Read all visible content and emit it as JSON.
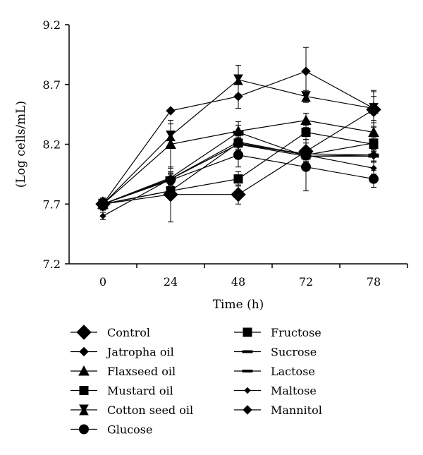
{
  "chart_data": {
    "type": "line",
    "title": "",
    "xlabel": "Time (h)",
    "ylabel": "(Log cells/mL)",
    "categories": [
      "0",
      "24",
      "48",
      "72",
      "78"
    ],
    "ylim": [
      7.2,
      9.2
    ],
    "yticks": [
      "7.2",
      "7.7",
      "8.2",
      "8.7",
      "9.2"
    ],
    "grid": false,
    "legend_position": "bottom",
    "series": [
      {
        "name": "Control",
        "marker": "diamond-large",
        "values": [
          7.7,
          7.78,
          7.78,
          8.14,
          8.49
        ],
        "errors": [
          0.05,
          0.23,
          0.08,
          0.1,
          0.15
        ]
      },
      {
        "name": "Jatropha oil",
        "marker": "diamond",
        "values": [
          7.7,
          8.48,
          8.6,
          8.81,
          8.5
        ],
        "errors": [
          0.04,
          0.0,
          0.1,
          0.2,
          0.1
        ]
      },
      {
        "name": "Flaxseed oil",
        "marker": "triangle",
        "values": [
          7.7,
          8.2,
          8.31,
          8.4,
          8.3
        ],
        "errors": [
          0.04,
          0.2,
          0.08,
          0.06,
          0.08
        ]
      },
      {
        "name": "Mustard oil",
        "marker": "square",
        "values": [
          7.7,
          7.81,
          7.91,
          8.3,
          8.2
        ],
        "errors": [
          0.05,
          0.06,
          0.06,
          0.06,
          0.06
        ]
      },
      {
        "name": "Cotton seed oil",
        "marker": "bowtie",
        "values": [
          7.7,
          8.27,
          8.74,
          8.6,
          8.5
        ],
        "errors": [
          0.05,
          0.1,
          0.12,
          0.05,
          0.15
        ]
      },
      {
        "name": "Glucose",
        "marker": "circle",
        "values": [
          7.7,
          7.9,
          8.11,
          8.01,
          7.91
        ],
        "errors": [
          0.04,
          0.05,
          0.1,
          0.2,
          0.07
        ]
      },
      {
        "name": "Fructose",
        "marker": "square",
        "values": [
          7.7,
          7.81,
          8.21,
          8.11,
          8.21
        ],
        "errors": [
          0.04,
          0.05,
          0.06,
          0.06,
          0.06
        ]
      },
      {
        "name": "Sucrose",
        "marker": "dash",
        "values": [
          7.7,
          7.91,
          8.2,
          8.1,
          8.1
        ],
        "errors": [
          0.04,
          0.04,
          0.05,
          0.05,
          0.05
        ]
      },
      {
        "name": "Lactose",
        "marker": "dash",
        "values": [
          7.7,
          7.92,
          8.3,
          8.1,
          8.11
        ],
        "errors": [
          0.04,
          0.05,
          0.06,
          0.05,
          0.05
        ]
      },
      {
        "name": "Maltose",
        "marker": "diamond-small",
        "values": [
          7.6,
          7.91,
          8.22,
          8.11,
          8.0
        ],
        "errors": [
          0.03,
          0.05,
          0.06,
          0.05,
          0.05
        ]
      },
      {
        "name": "Mannitol",
        "marker": "diamond",
        "values": [
          7.7,
          7.91,
          8.2,
          8.12,
          8.11
        ],
        "errors": [
          0.04,
          0.05,
          0.06,
          0.05,
          0.05
        ]
      }
    ]
  }
}
